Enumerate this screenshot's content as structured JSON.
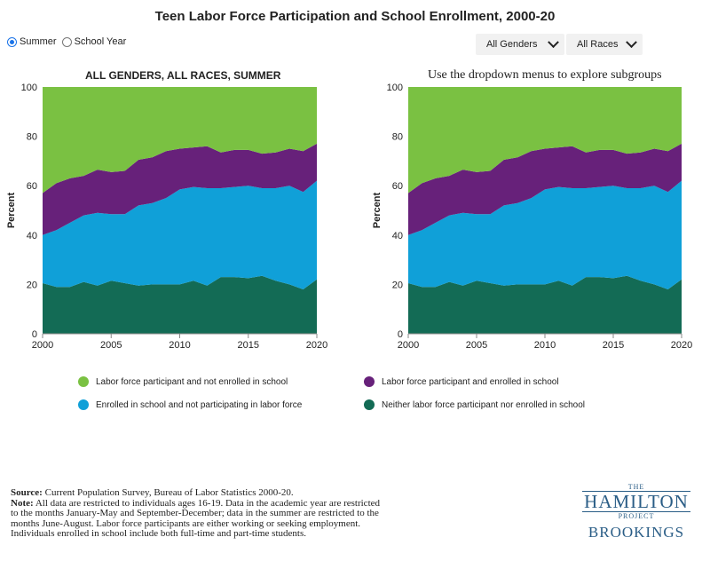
{
  "title": "Teen Labor Force Participation and School Enrollment, 2000-20",
  "controls": {
    "radio_summer": "Summer",
    "radio_school_year": "School Year",
    "selected": "Summer",
    "gender_dropdown": "All Genders",
    "race_dropdown": "All Races"
  },
  "left_subtitle": "ALL GENDERS, ALL RACES, SUMMER",
  "right_subtitle": "Use the dropdown menus to explore subgroups",
  "legend": [
    {
      "label": "Labor force participant and not enrolled in school",
      "color": "#7ac142"
    },
    {
      "label": "Labor force participant and enrolled in school",
      "color": "#67217a"
    },
    {
      "label": "Enrolled in school and not participating in labor force",
      "color": "#10a0d8"
    },
    {
      "label": "Neither labor force participant nor enrolled in school",
      "color": "#136b55"
    }
  ],
  "source": {
    "source_label": "Source:",
    "source_text": "Current Population Survey, Bureau of Labor Statistics 2000-20.",
    "note_label": "Note:",
    "note_text": "All data are restricted to individuals ages 16-19. Data in the academic year are restricted to the months January-May and September-December; data in the summer are restricted to the months June-August. Labor force participants are either working or seeking employment. Individuals enrolled in school include both full-time and part-time students."
  },
  "logo": {
    "the": "THE",
    "hamilton": "HAMILTON",
    "project": "PROJECT",
    "brookings": "BROOKINGS"
  },
  "chart_data": [
    {
      "type": "area",
      "stacked": true,
      "ylabel": "Percent",
      "ylim": [
        0,
        100
      ],
      "xlim": [
        2000,
        2020
      ],
      "y_ticks": [
        0,
        20,
        40,
        60,
        80,
        100
      ],
      "x_ticks": [
        2000,
        2005,
        2010,
        2015,
        2020
      ],
      "grid": false,
      "x": [
        2000,
        2001,
        2002,
        2003,
        2004,
        2005,
        2006,
        2007,
        2008,
        2009,
        2010,
        2011,
        2012,
        2013,
        2014,
        2015,
        2016,
        2017,
        2018,
        2019,
        2020
      ],
      "series": [
        {
          "name": "Neither labor force participant nor enrolled in school",
          "color": "#136b55",
          "values": [
            20.5,
            19,
            19,
            21,
            19.5,
            21.5,
            20.5,
            19.5,
            20,
            20,
            20,
            21.5,
            19.5,
            23,
            23,
            22.5,
            23.5,
            21.5,
            20,
            18,
            22
          ]
        },
        {
          "name": "Enrolled in school and not participating in labor force",
          "color": "#10a0d8",
          "values": [
            19.5,
            23,
            26,
            27,
            29.5,
            27,
            28,
            32.5,
            33,
            35,
            38.5,
            38,
            39.5,
            36,
            36.5,
            37.5,
            35.5,
            37.5,
            40,
            39.5,
            40
          ]
        },
        {
          "name": "Labor force participant and enrolled in school",
          "color": "#67217a",
          "values": [
            17,
            19,
            18,
            16,
            17.5,
            17,
            17.5,
            18.5,
            18.5,
            19,
            16.5,
            16,
            17,
            14.5,
            15,
            14.5,
            14,
            14.5,
            15,
            16.5,
            15
          ]
        },
        {
          "name": "Labor force participant and not enrolled in school",
          "color": "#7ac142",
          "values": [
            43,
            39,
            37,
            36,
            33.5,
            34.5,
            34,
            29.5,
            28.5,
            26,
            25,
            24.5,
            24,
            26.5,
            25.5,
            25.5,
            27,
            26.5,
            25,
            26,
            23
          ]
        }
      ]
    },
    {
      "type": "area",
      "stacked": true,
      "ylabel": "Percent",
      "ylim": [
        0,
        100
      ],
      "xlim": [
        2000,
        2020
      ],
      "y_ticks": [
        0,
        20,
        40,
        60,
        80,
        100
      ],
      "x_ticks": [
        2000,
        2005,
        2010,
        2015,
        2020
      ],
      "grid": false,
      "x": [
        2000,
        2001,
        2002,
        2003,
        2004,
        2005,
        2006,
        2007,
        2008,
        2009,
        2010,
        2011,
        2012,
        2013,
        2014,
        2015,
        2016,
        2017,
        2018,
        2019,
        2020
      ],
      "series": [
        {
          "name": "Neither labor force participant nor enrolled in school",
          "color": "#136b55",
          "values": [
            20.5,
            19,
            19,
            21,
            19.5,
            21.5,
            20.5,
            19.5,
            20,
            20,
            20,
            21.5,
            19.5,
            23,
            23,
            22.5,
            23.5,
            21.5,
            20,
            18,
            22
          ]
        },
        {
          "name": "Enrolled in school and not participating in labor force",
          "color": "#10a0d8",
          "values": [
            19.5,
            23,
            26,
            27,
            29.5,
            27,
            28,
            32.5,
            33,
            35,
            38.5,
            38,
            39.5,
            36,
            36.5,
            37.5,
            35.5,
            37.5,
            40,
            39.5,
            40
          ]
        },
        {
          "name": "Labor force participant and enrolled in school",
          "color": "#67217a",
          "values": [
            17,
            19,
            18,
            16,
            17.5,
            17,
            17.5,
            18.5,
            18.5,
            19,
            16.5,
            16,
            17,
            14.5,
            15,
            14.5,
            14,
            14.5,
            15,
            16.5,
            15
          ]
        },
        {
          "name": "Labor force participant and not enrolled in school",
          "color": "#7ac142",
          "values": [
            43,
            39,
            37,
            36,
            33.5,
            34.5,
            34,
            29.5,
            28.5,
            26,
            25,
            24.5,
            24,
            26.5,
            25.5,
            25.5,
            27,
            26.5,
            25,
            26,
            23
          ]
        }
      ]
    }
  ]
}
